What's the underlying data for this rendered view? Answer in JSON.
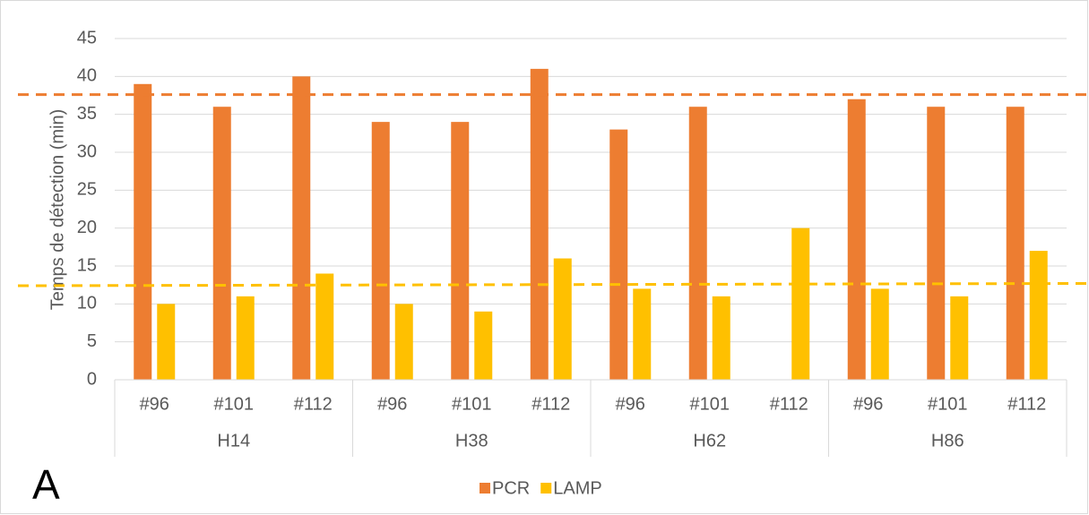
{
  "chart_data": {
    "type": "bar",
    "annotation": "A",
    "y_label": "Temps de détection (min)",
    "categories": [
      "#96",
      "#101",
      "#112",
      "#96",
      "#101",
      "#112",
      "#96",
      "#101",
      "#112",
      "#96",
      "#101",
      "#112"
    ],
    "groups": [
      "H14",
      "H38",
      "H62",
      "H86"
    ],
    "series": [
      {
        "name": "PCR",
        "color": "#ed7d31",
        "values": [
          39,
          36,
          40,
          34,
          34,
          41,
          33,
          36,
          null,
          37,
          36,
          36
        ]
      },
      {
        "name": "LAMP",
        "color": "#ffc000",
        "values": [
          10,
          11,
          14,
          10,
          9,
          16,
          12,
          11,
          20,
          12,
          11,
          17
        ]
      }
    ],
    "reference_lines": [
      {
        "color": "#ed7d31",
        "values": [
          37.6,
          37.6
        ]
      },
      {
        "color": "#ffc000",
        "values": [
          12.4,
          12.7
        ]
      }
    ],
    "ylim": [
      0,
      45
    ],
    "yticks": [
      0,
      5,
      10,
      15,
      20,
      25,
      30,
      35,
      40,
      45
    ],
    "grid": true
  }
}
